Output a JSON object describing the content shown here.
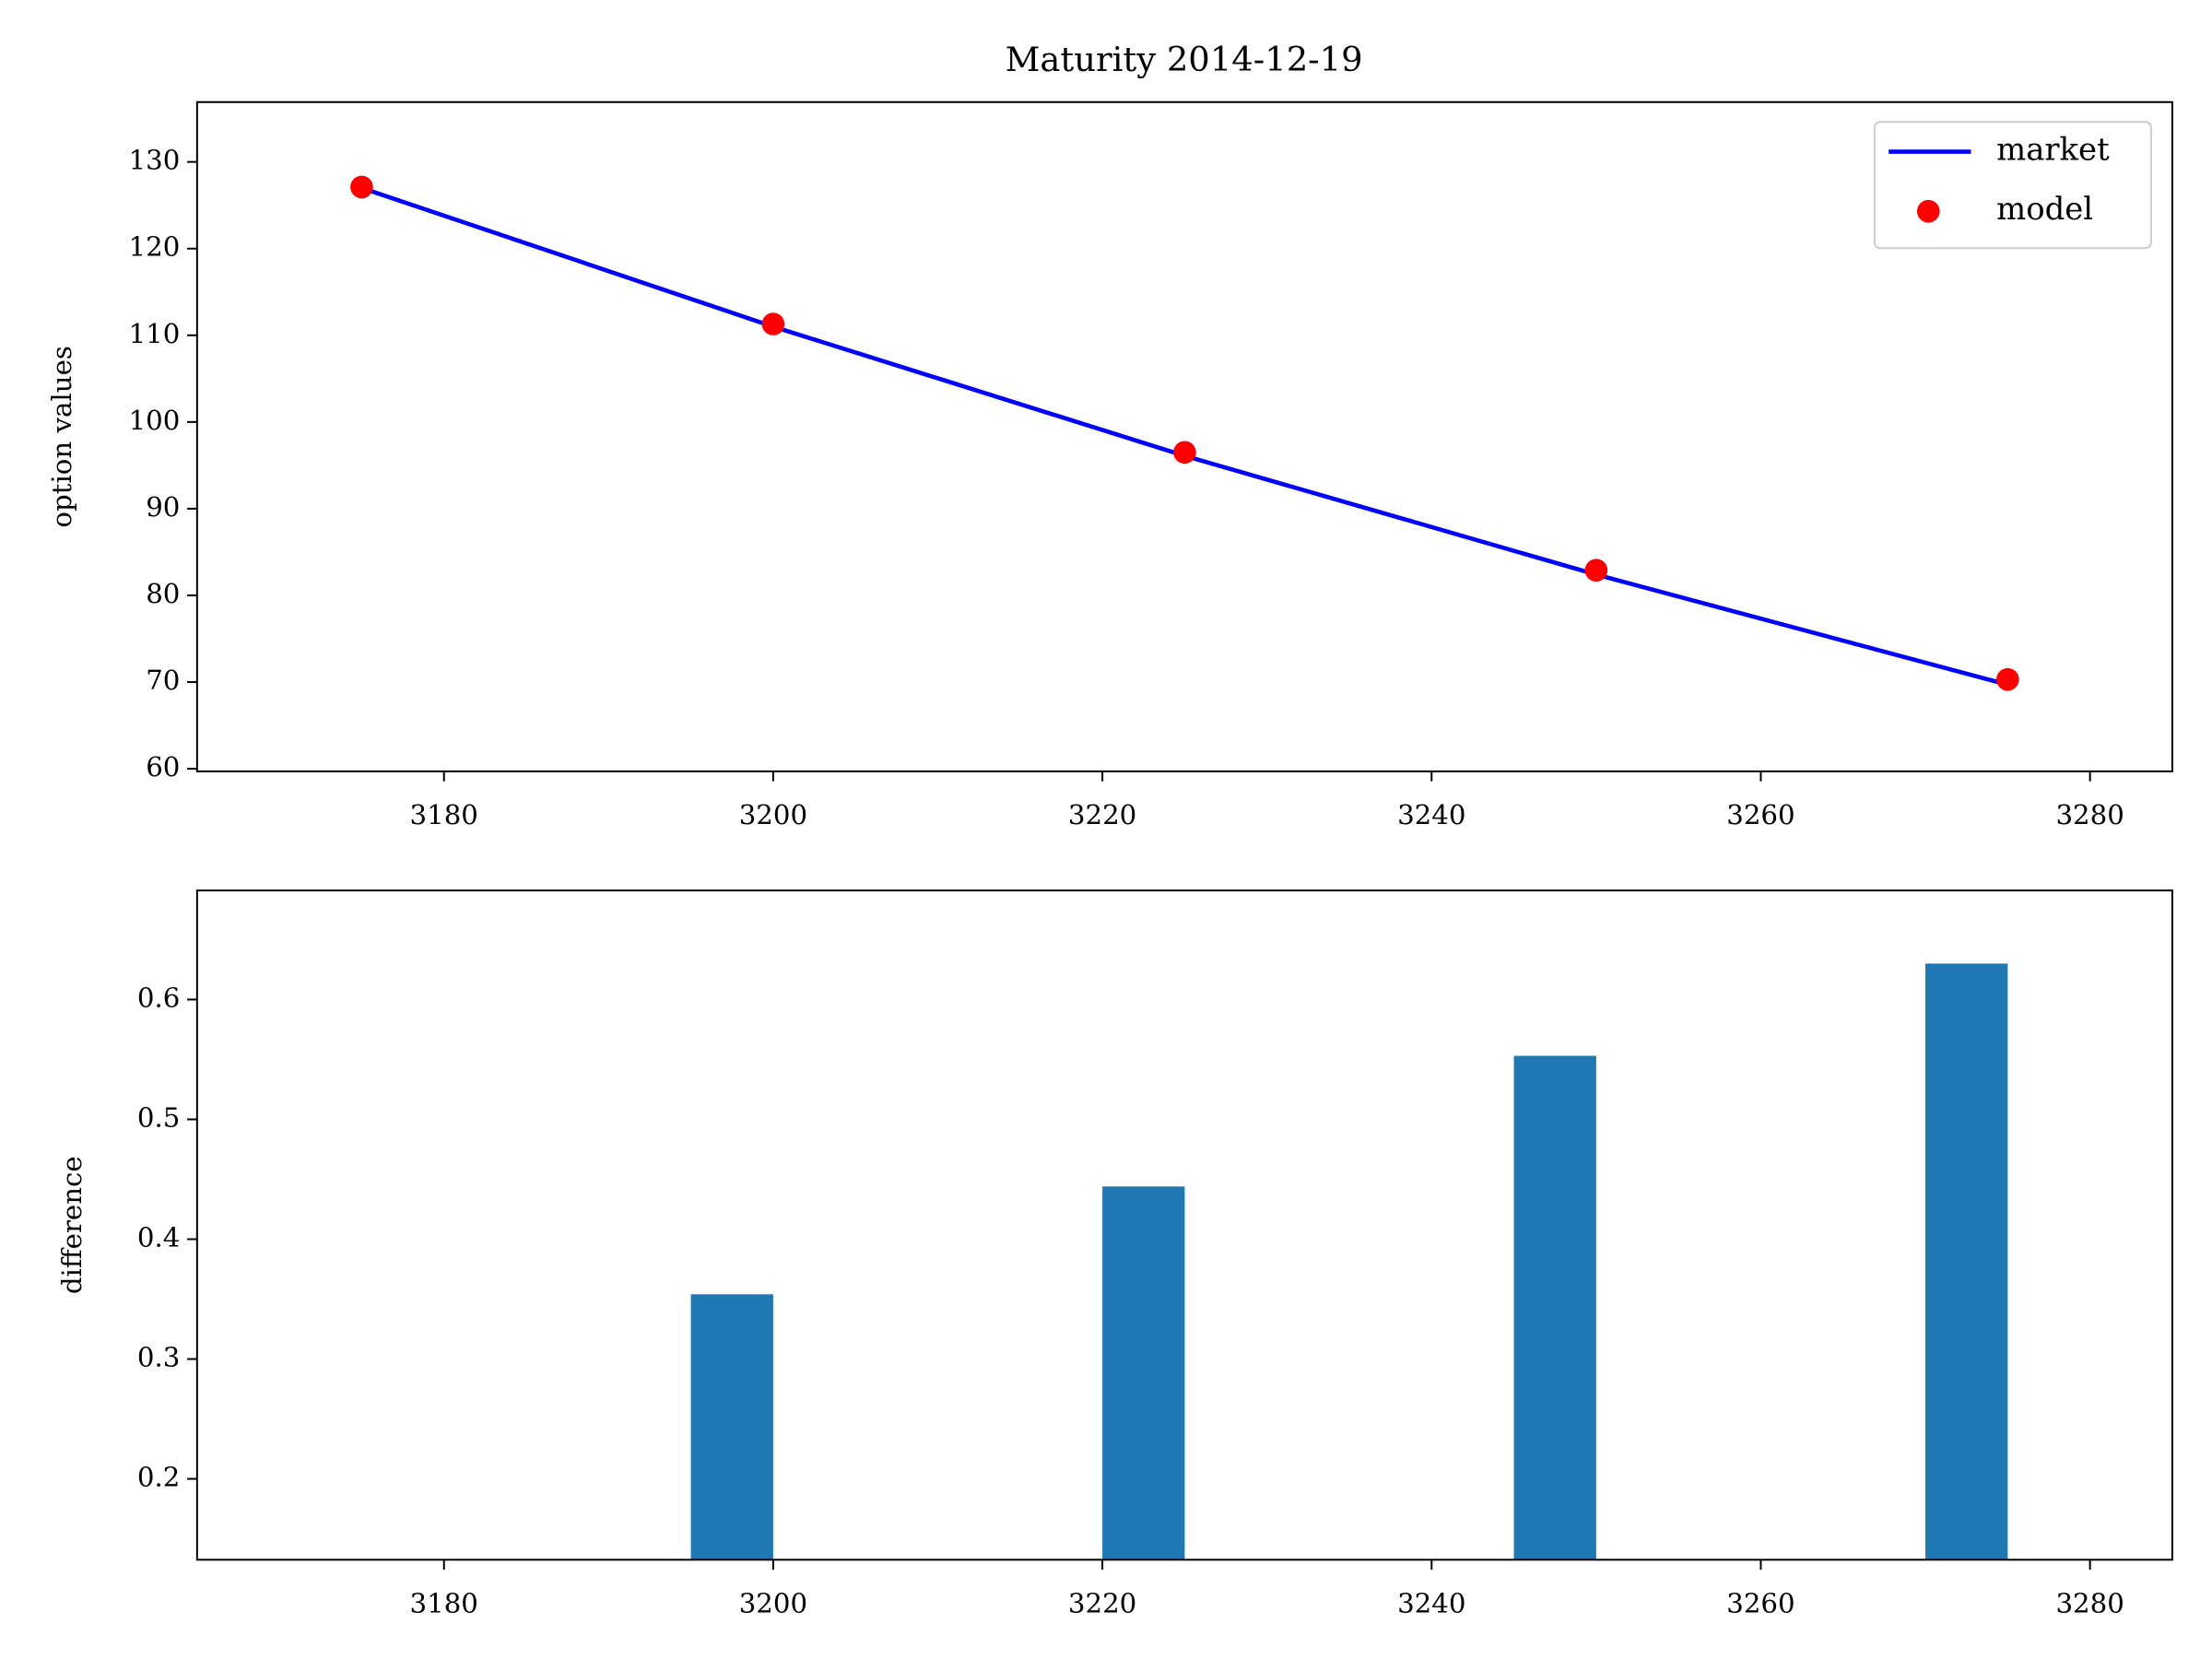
{
  "chart_data": [
    {
      "type": "line",
      "title": "Maturity 2014-12-19",
      "ylabel": "option values",
      "x": [
        3175,
        3200,
        3225,
        3250,
        3275
      ],
      "series": [
        {
          "name": "market",
          "type": "line",
          "color": "#0000ff",
          "values": [
            127.0,
            111.0,
            96.1,
            82.4,
            69.7
          ]
        },
        {
          "name": "model",
          "type": "scatter",
          "color": "#ff0000",
          "values": [
            127.1,
            111.3,
            96.5,
            82.9,
            70.3
          ]
        }
      ],
      "xlim": [
        3165,
        3285
      ],
      "ylim": [
        59.7,
        136.9
      ],
      "xticks": [
        3180,
        3200,
        3220,
        3240,
        3260,
        3280
      ],
      "yticks": [
        60,
        70,
        80,
        90,
        100,
        110,
        120,
        130
      ],
      "legend": "upper right"
    },
    {
      "type": "bar",
      "ylabel": "difference",
      "x": [
        3200,
        3225,
        3250,
        3275
      ],
      "values": [
        0.354,
        0.444,
        0.553,
        0.63
      ],
      "color": "#1f77b4",
      "xlim": [
        3165,
        3285
      ],
      "ylim": [
        0.1325,
        0.691
      ],
      "xticks": [
        3180,
        3200,
        3220,
        3240,
        3260,
        3280
      ],
      "yticks": [
        0.2,
        0.3,
        0.4,
        0.5,
        0.6
      ]
    }
  ]
}
